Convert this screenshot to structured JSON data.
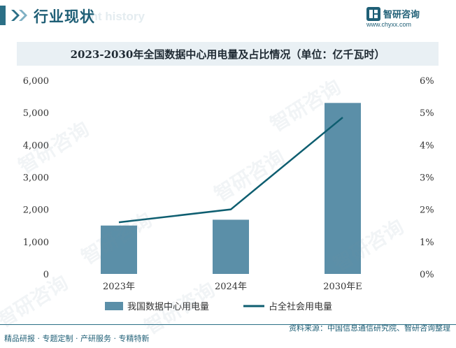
{
  "header": {
    "title": "行业现状",
    "watermark_en": "ent history"
  },
  "logo": {
    "name": "智研咨询",
    "url": "www.chyxx.com"
  },
  "chart_data": {
    "type": "bar",
    "title": "2023-2030年全国数据中心用电量及占比情况（单位：亿千瓦时）",
    "categories": [
      "2023年",
      "2024年",
      "2030年E"
    ],
    "series": [
      {
        "name": "我国数据中心用电量",
        "type": "bar",
        "axis": "left",
        "color": "#5b8fa8",
        "values": [
          1500,
          1680,
          5300
        ]
      },
      {
        "name": "占全社会用电量",
        "type": "line",
        "axis": "right",
        "color": "#0e5e70",
        "values": [
          1.6,
          2.0,
          4.85
        ]
      }
    ],
    "y_left": {
      "ticks": [
        "0",
        "1,000",
        "2,000",
        "3,000",
        "4,000",
        "5,000",
        "6,000"
      ],
      "ylim": [
        0,
        6000
      ]
    },
    "y_right": {
      "ticks": [
        "0%",
        "1%",
        "2%",
        "3%",
        "4%",
        "5%",
        "6%"
      ],
      "ylim": [
        0,
        6
      ]
    },
    "legend_position": "bottom"
  },
  "footer": {
    "source": "资料来源：中国信息通信研究院、智研咨询整理",
    "tagline": "精品研报 · 专题定制 · 产研服务 · 专精特新"
  },
  "watermark": "智研咨询"
}
